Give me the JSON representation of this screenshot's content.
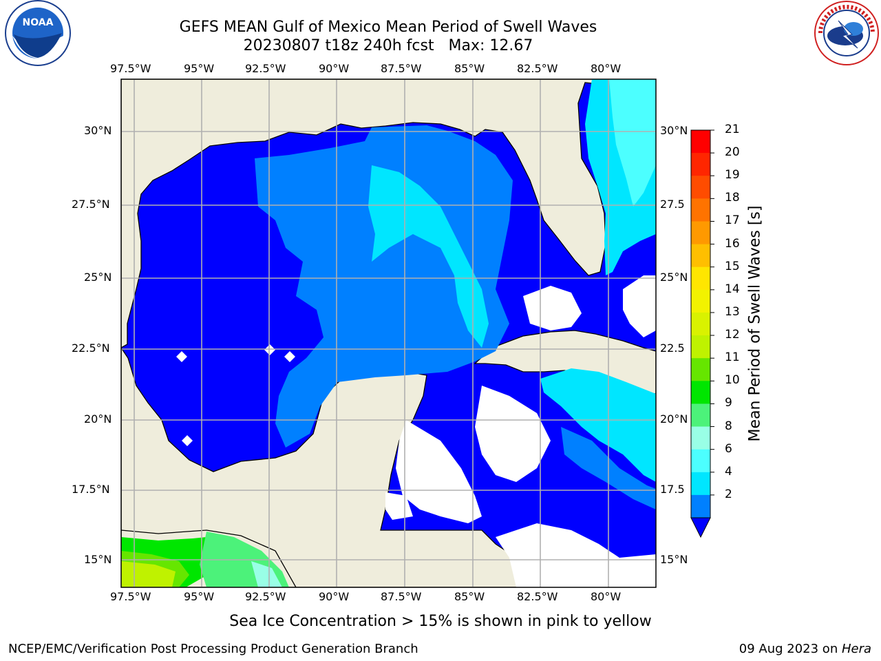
{
  "header": {
    "title_line1": "GEFS MEAN Gulf of Mexico Mean Period of Swell Waves",
    "title_line2": "20230807 t18z 240h fcst   Max: 12.67"
  },
  "logos": {
    "left": {
      "name": "noaa-logo",
      "text": "NOAA",
      "ring_text": "NATIONAL OCEANIC AND ATMOSPHERIC ADMINISTRATION · U.S. DEPARTMENT OF COMMERCE"
    },
    "right": {
      "name": "nws-logo",
      "ring_text": "NATIONAL WEATHER SERVICE"
    }
  },
  "map": {
    "lon_ticks": [
      "97.5°W",
      "95°W",
      "92.5°W",
      "90°W",
      "87.5°W",
      "85°W",
      "82.5°W",
      "80°W"
    ],
    "lat_ticks_left": [
      "30°N",
      "27.5°N",
      "25°N",
      "22.5°N",
      "20°N",
      "17.5°N",
      "15°N"
    ],
    "lat_ticks_right": [
      "30°N",
      "27.5",
      "25°N",
      "22.5",
      "20°N",
      "17.5",
      "15°N"
    ],
    "land_color": "#efeddc",
    "grid_color": "#b0b0b0"
  },
  "colorbar": {
    "label": "Mean Period of Swell Waves [s]",
    "ticks": [
      "21",
      "20",
      "19",
      "18",
      "17",
      "16",
      "15",
      "14",
      "13",
      "12",
      "11",
      "10",
      "9",
      "8",
      "6",
      "4",
      "2"
    ],
    "colors": [
      "#ff0000",
      "#ff2600",
      "#ff4c00",
      "#ff7300",
      "#ff9900",
      "#ffbf00",
      "#ffe600",
      "#f2f200",
      "#d9f200",
      "#bff200",
      "#66e600",
      "#00e600",
      "#4cf27a",
      "#99ffe6",
      "#4cffff",
      "#00e6ff",
      "#0080ff"
    ],
    "extend_color": "#0000ff"
  },
  "notes": {
    "sea_ice": "Sea Ice Concentration > 15% is shown in pink to yellow",
    "footer_left": "NCEP/EMC/Verification Post Processing Product Generation Branch",
    "footer_date": "09 Aug 2023 on ",
    "footer_host": "Hera"
  }
}
